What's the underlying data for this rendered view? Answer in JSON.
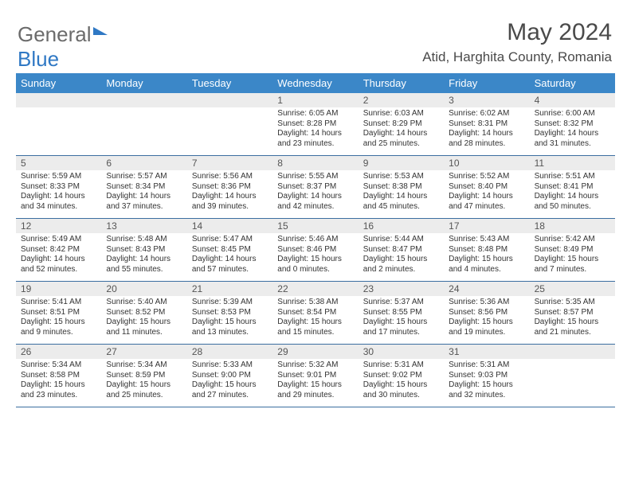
{
  "brand": {
    "part1": "General",
    "part2": "Blue"
  },
  "title": {
    "month": "May 2024",
    "location": "Atid, Harghita County, Romania"
  },
  "colors": {
    "header_bg": "#3b87c8",
    "header_fg": "#ffffff",
    "dayno_bg": "#ececec",
    "rule": "#3b6ea0",
    "text": "#333333",
    "brand_gray": "#6b6b6b",
    "brand_blue": "#2f78c4"
  },
  "daynames": [
    "Sunday",
    "Monday",
    "Tuesday",
    "Wednesday",
    "Thursday",
    "Friday",
    "Saturday"
  ],
  "weeks": [
    [
      {
        "n": "",
        "sr": "",
        "ss": "",
        "dl": ""
      },
      {
        "n": "",
        "sr": "",
        "ss": "",
        "dl": ""
      },
      {
        "n": "",
        "sr": "",
        "ss": "",
        "dl": ""
      },
      {
        "n": "1",
        "sr": "6:05 AM",
        "ss": "8:28 PM",
        "dl": "14 hours and 23 minutes."
      },
      {
        "n": "2",
        "sr": "6:03 AM",
        "ss": "8:29 PM",
        "dl": "14 hours and 25 minutes."
      },
      {
        "n": "3",
        "sr": "6:02 AM",
        "ss": "8:31 PM",
        "dl": "14 hours and 28 minutes."
      },
      {
        "n": "4",
        "sr": "6:00 AM",
        "ss": "8:32 PM",
        "dl": "14 hours and 31 minutes."
      }
    ],
    [
      {
        "n": "5",
        "sr": "5:59 AM",
        "ss": "8:33 PM",
        "dl": "14 hours and 34 minutes."
      },
      {
        "n": "6",
        "sr": "5:57 AM",
        "ss": "8:34 PM",
        "dl": "14 hours and 37 minutes."
      },
      {
        "n": "7",
        "sr": "5:56 AM",
        "ss": "8:36 PM",
        "dl": "14 hours and 39 minutes."
      },
      {
        "n": "8",
        "sr": "5:55 AM",
        "ss": "8:37 PM",
        "dl": "14 hours and 42 minutes."
      },
      {
        "n": "9",
        "sr": "5:53 AM",
        "ss": "8:38 PM",
        "dl": "14 hours and 45 minutes."
      },
      {
        "n": "10",
        "sr": "5:52 AM",
        "ss": "8:40 PM",
        "dl": "14 hours and 47 minutes."
      },
      {
        "n": "11",
        "sr": "5:51 AM",
        "ss": "8:41 PM",
        "dl": "14 hours and 50 minutes."
      }
    ],
    [
      {
        "n": "12",
        "sr": "5:49 AM",
        "ss": "8:42 PM",
        "dl": "14 hours and 52 minutes."
      },
      {
        "n": "13",
        "sr": "5:48 AM",
        "ss": "8:43 PM",
        "dl": "14 hours and 55 minutes."
      },
      {
        "n": "14",
        "sr": "5:47 AM",
        "ss": "8:45 PM",
        "dl": "14 hours and 57 minutes."
      },
      {
        "n": "15",
        "sr": "5:46 AM",
        "ss": "8:46 PM",
        "dl": "15 hours and 0 minutes."
      },
      {
        "n": "16",
        "sr": "5:44 AM",
        "ss": "8:47 PM",
        "dl": "15 hours and 2 minutes."
      },
      {
        "n": "17",
        "sr": "5:43 AM",
        "ss": "8:48 PM",
        "dl": "15 hours and 4 minutes."
      },
      {
        "n": "18",
        "sr": "5:42 AM",
        "ss": "8:49 PM",
        "dl": "15 hours and 7 minutes."
      }
    ],
    [
      {
        "n": "19",
        "sr": "5:41 AM",
        "ss": "8:51 PM",
        "dl": "15 hours and 9 minutes."
      },
      {
        "n": "20",
        "sr": "5:40 AM",
        "ss": "8:52 PM",
        "dl": "15 hours and 11 minutes."
      },
      {
        "n": "21",
        "sr": "5:39 AM",
        "ss": "8:53 PM",
        "dl": "15 hours and 13 minutes."
      },
      {
        "n": "22",
        "sr": "5:38 AM",
        "ss": "8:54 PM",
        "dl": "15 hours and 15 minutes."
      },
      {
        "n": "23",
        "sr": "5:37 AM",
        "ss": "8:55 PM",
        "dl": "15 hours and 17 minutes."
      },
      {
        "n": "24",
        "sr": "5:36 AM",
        "ss": "8:56 PM",
        "dl": "15 hours and 19 minutes."
      },
      {
        "n": "25",
        "sr": "5:35 AM",
        "ss": "8:57 PM",
        "dl": "15 hours and 21 minutes."
      }
    ],
    [
      {
        "n": "26",
        "sr": "5:34 AM",
        "ss": "8:58 PM",
        "dl": "15 hours and 23 minutes."
      },
      {
        "n": "27",
        "sr": "5:34 AM",
        "ss": "8:59 PM",
        "dl": "15 hours and 25 minutes."
      },
      {
        "n": "28",
        "sr": "5:33 AM",
        "ss": "9:00 PM",
        "dl": "15 hours and 27 minutes."
      },
      {
        "n": "29",
        "sr": "5:32 AM",
        "ss": "9:01 PM",
        "dl": "15 hours and 29 minutes."
      },
      {
        "n": "30",
        "sr": "5:31 AM",
        "ss": "9:02 PM",
        "dl": "15 hours and 30 minutes."
      },
      {
        "n": "31",
        "sr": "5:31 AM",
        "ss": "9:03 PM",
        "dl": "15 hours and 32 minutes."
      },
      {
        "n": "",
        "sr": "",
        "ss": "",
        "dl": ""
      }
    ]
  ],
  "labels": {
    "sunrise": "Sunrise:",
    "sunset": "Sunset:",
    "daylight": "Daylight:"
  }
}
